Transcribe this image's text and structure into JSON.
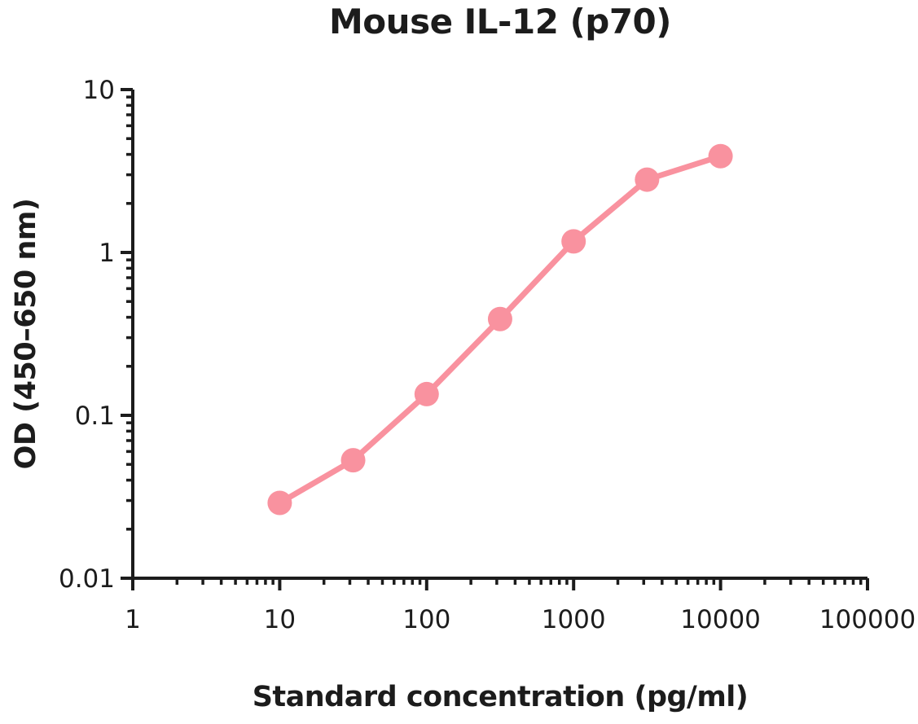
{
  "chart_data": {
    "type": "line",
    "title": "Mouse IL-12 (p70)",
    "xlabel": "Standard concentration (pg/ml)",
    "ylabel": "OD (450–650 nm)",
    "x_scale": "log",
    "y_scale": "log",
    "xlim": [
      1,
      100000
    ],
    "ylim": [
      0.01,
      10
    ],
    "x_tick_labels": [
      "1",
      "10",
      "100",
      "1000",
      "10000",
      "100000"
    ],
    "y_tick_labels": [
      "0.01",
      "0.1",
      "1",
      "10"
    ],
    "grid": false,
    "legend_position": "none",
    "series": [
      {
        "x": [
          10,
          31.6,
          100,
          316,
          1000,
          3160,
          10000
        ],
        "y": [
          0.029,
          0.053,
          0.135,
          0.39,
          1.17,
          2.8,
          3.9
        ]
      }
    ],
    "line_color": "#F9929F",
    "marker_color": "#F9929F",
    "axis_color": "#1c1c1c"
  }
}
